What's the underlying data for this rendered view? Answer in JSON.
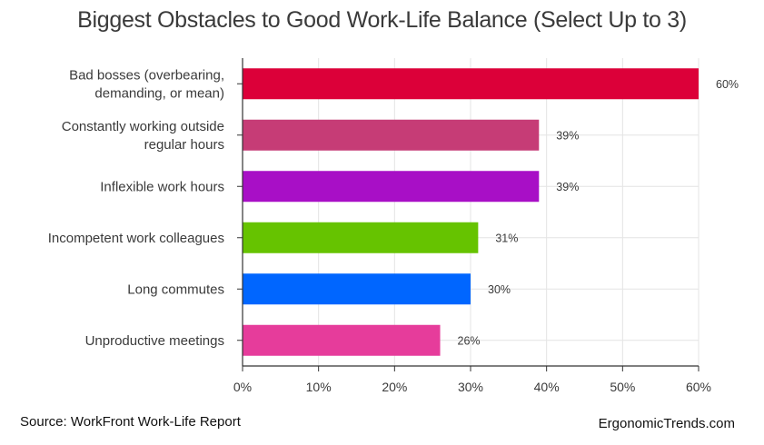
{
  "chart_data": {
    "type": "bar",
    "orientation": "horizontal",
    "title": "Biggest Obstacles to Good Work-Life Balance (Select Up to 3)",
    "categories": [
      [
        "Bad bosses (overbearing,",
        "demanding, or mean)"
      ],
      [
        "Constantly working outside",
        "regular hours"
      ],
      [
        "Inflexible work hours"
      ],
      [
        "Incompetent work colleagues"
      ],
      [
        "Long commutes"
      ],
      [
        "Unproductive meetings"
      ]
    ],
    "values": [
      60,
      39,
      39,
      31,
      30,
      26
    ],
    "value_labels": [
      "60%",
      "39%",
      "39%",
      "31%",
      "30%",
      "26%"
    ],
    "colors": [
      "#dc0039",
      "#c63c76",
      "#a80fc6",
      "#66c300",
      "#0066ff",
      "#e63c9b"
    ],
    "xlim": [
      0,
      60
    ],
    "xticks": [
      0,
      10,
      20,
      30,
      40,
      50,
      60
    ],
    "xtick_labels": [
      "0%",
      "10%",
      "20%",
      "30%",
      "40%",
      "50%",
      "60%"
    ],
    "grid": true,
    "legend": "none"
  },
  "footer": {
    "source": "Source: WorkFront Work-Life Report",
    "site": "ErgonomicTrends.com"
  }
}
